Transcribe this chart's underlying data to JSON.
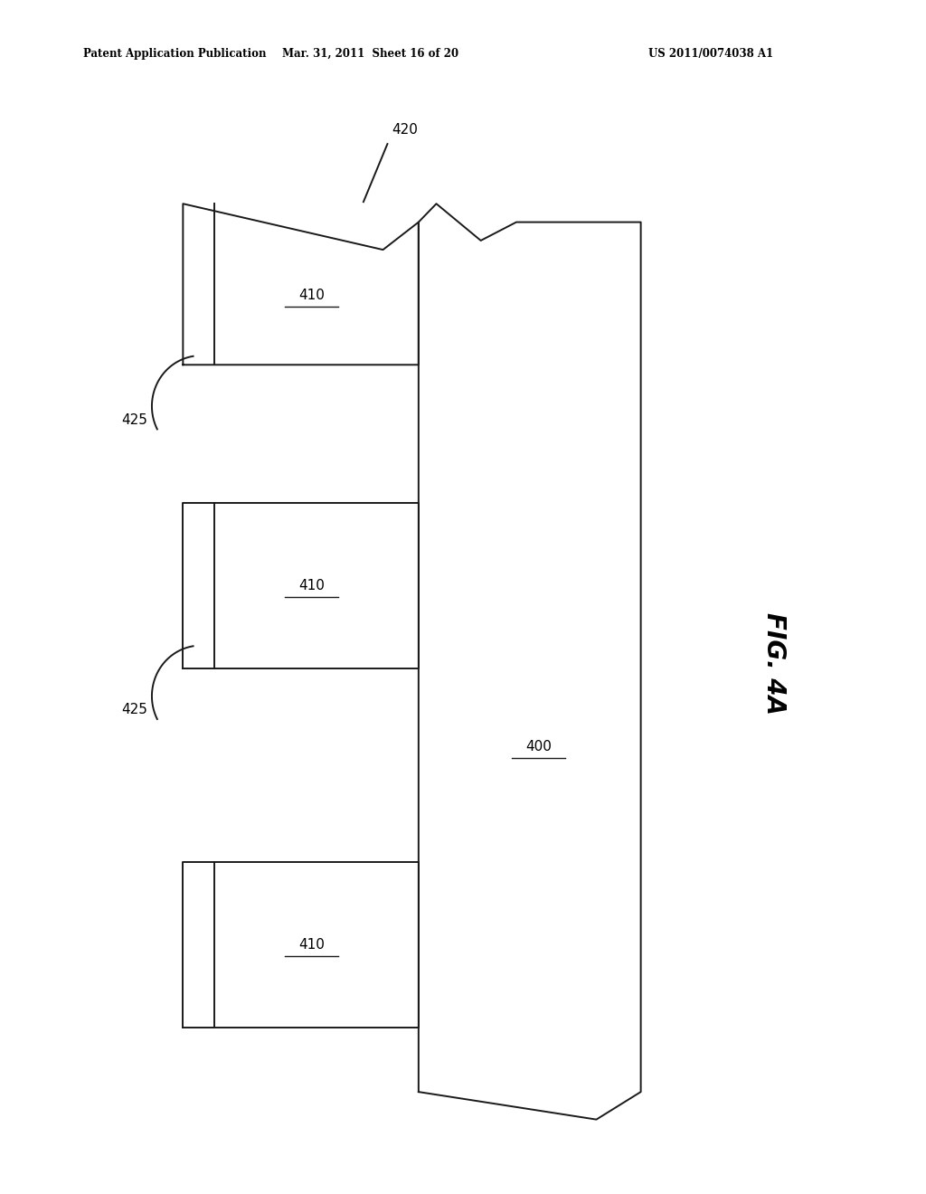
{
  "bg_color": "#ffffff",
  "line_color": "#1a1a1a",
  "line_width": 1.4,
  "header_left": "Patent Application Publication",
  "header_center": "Mar. 31, 2011  Sheet 16 of 20",
  "header_right": "US 2011/0074038 A1",
  "fig_label": "FIG. 4A",
  "xlim": [
    0,
    10
  ],
  "ylim": [
    0,
    12
  ]
}
